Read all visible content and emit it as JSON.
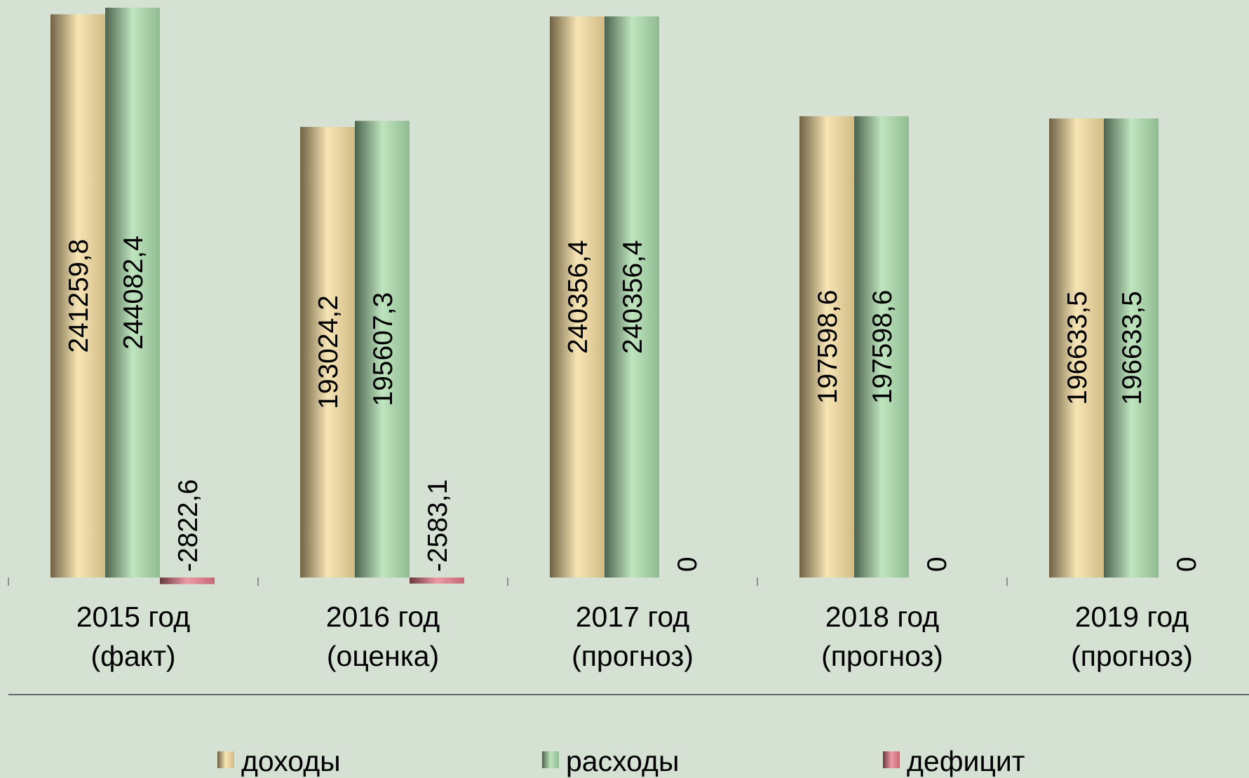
{
  "chart_data": {
    "type": "bar",
    "categories": [
      "2015 год\n(факт)",
      "2016 год\n(оценка)",
      "2017 год\n(прогноз)",
      "2018 год\n(прогноз)",
      "2019 год\n(прогноз)"
    ],
    "series": [
      {
        "name": "доходы",
        "color": "#f6dc9c",
        "values": [
          241259.8,
          193024.2,
          240356.4,
          197598.6,
          196633.5
        ],
        "value_labels": [
          "241259,8",
          "193024,2",
          "240356,4",
          "197598,6",
          "196633,5"
        ]
      },
      {
        "name": "расходы",
        "color": "#a9dcaa",
        "values": [
          244082.4,
          195607.3,
          240356.4,
          197598.6,
          196633.5
        ],
        "value_labels": [
          "244082,4",
          "195607,3",
          "240356,4",
          "197598,6",
          "196633,5"
        ]
      },
      {
        "name": "дефицит",
        "color": "#e87a8a",
        "values": [
          -2822.6,
          -2583.1,
          0,
          0,
          0
        ],
        "value_labels": [
          "-2822,6",
          "-2583,1",
          "0",
          "0",
          "0"
        ]
      }
    ],
    "legend": "bottom"
  }
}
